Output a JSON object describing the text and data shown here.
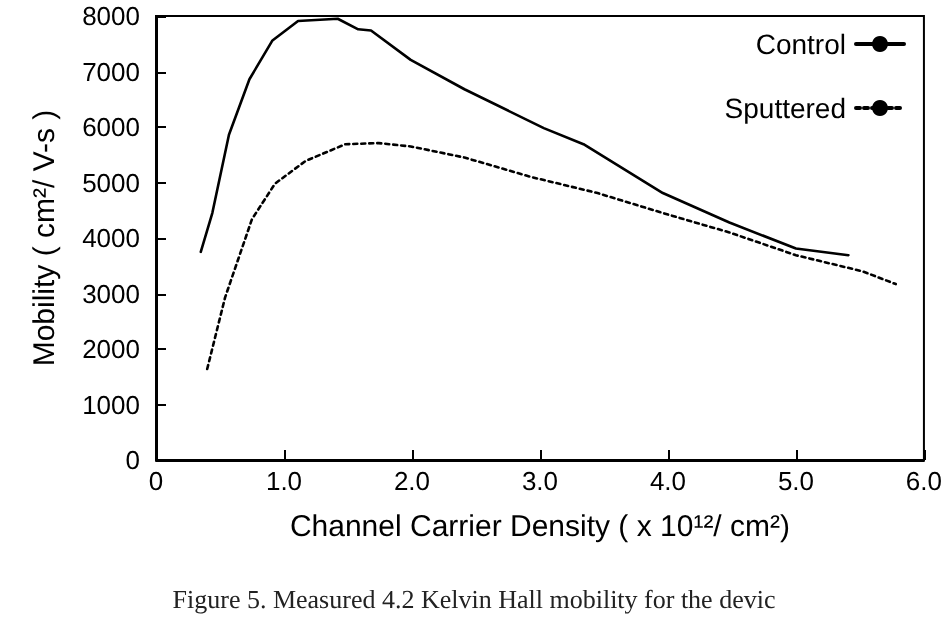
{
  "chart_data": {
    "type": "line",
    "xlabel": "Channel Carrier Density ( x 10¹²/ cm²)",
    "ylabel": "Mobility ( cm²/ V-s )",
    "xlim": [
      0,
      6
    ],
    "xticks": [
      0,
      {
        "value": 1,
        "label": "1.0"
      },
      {
        "value": 2,
        "label": "2.0"
      },
      {
        "value": 3,
        "label": "3.0"
      },
      {
        "value": 4,
        "label": "4.0"
      },
      {
        "value": 5,
        "label": "5.0"
      },
      {
        "value": 6,
        "label": "6.0"
      }
    ],
    "ylim": [
      0,
      8000
    ],
    "yticks": [
      0,
      1000,
      2000,
      3000,
      4000,
      5000,
      6000,
      7000,
      8000
    ],
    "series": [
      {
        "name": "Control",
        "color": "#000000",
        "line_style": "solid",
        "x": [
          0.35,
          0.44,
          0.57,
          0.73,
          0.91,
          1.11,
          1.42,
          1.58,
          1.68,
          1.99,
          2.41,
          3.03,
          3.34,
          3.96,
          4.48,
          5.0,
          5.41
        ],
        "values": [
          3750,
          4450,
          5860,
          6860,
          7560,
          7910,
          7950,
          7760,
          7740,
          7210,
          6680,
          5980,
          5690,
          4810,
          4280,
          3810,
          3690
        ]
      },
      {
        "name": "Sputtered",
        "color": "#000000",
        "line_style": "dotted",
        "x": [
          0.4,
          0.54,
          0.75,
          0.93,
          1.17,
          1.48,
          1.74,
          1.99,
          2.41,
          2.93,
          3.45,
          3.96,
          4.48,
          5.0,
          5.52,
          5.78
        ],
        "values": [
          1640,
          2930,
          4340,
          4980,
          5390,
          5690,
          5710,
          5650,
          5450,
          5100,
          4810,
          4450,
          4100,
          3690,
          3400,
          3170
        ]
      }
    ],
    "legend": "top right",
    "grid": false,
    "marker": "none",
    "annotations": [
      "Figure 5. Measured 4.2 Kelvin Hall mobility for the devic"
    ]
  }
}
